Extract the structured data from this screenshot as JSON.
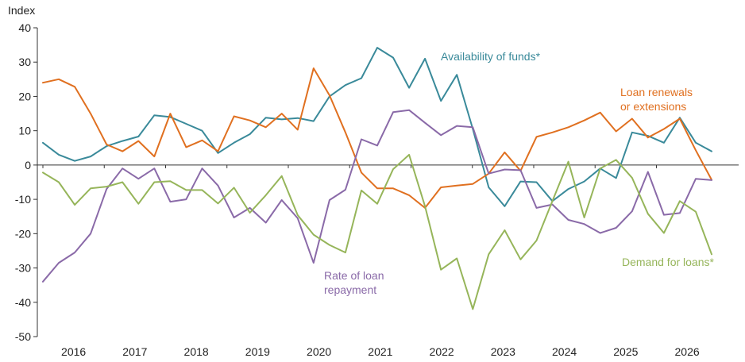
{
  "chart_data": {
    "type": "line",
    "title": "",
    "y_unit_label": "Index",
    "xlabel": "",
    "ylabel": "",
    "ylim": [
      -50,
      40
    ],
    "yticks": [
      40,
      30,
      20,
      10,
      0,
      -10,
      -20,
      -30,
      -40,
      -50
    ],
    "year_labels": [
      "2016",
      "2017",
      "2018",
      "2019",
      "2020",
      "2021",
      "2022",
      "2023",
      "2024",
      "2025",
      "2026"
    ],
    "x_start_year": 2015.5,
    "x_end_year": 2026.4,
    "grid": false,
    "colors": {
      "availability": "#3a8a9a",
      "renewals": "#e07020",
      "repayment": "#8a6aa8",
      "demand": "#96b55a",
      "axis": "#333333"
    },
    "series": [
      {
        "key": "availability",
        "label_lines": [
          "Availability of funds*"
        ],
        "values": [
          6.5,
          3,
          1.2,
          2.5,
          5.5,
          7,
          8.3,
          14.5,
          14,
          12,
          10,
          3.5,
          6.5,
          9,
          13.8,
          13.3,
          13.7,
          12.8,
          20,
          23.3,
          25.3,
          34.2,
          31.3,
          22.5,
          31,
          18.7,
          26.3,
          10.5,
          -6.5,
          -12,
          -4.8,
          -5,
          -10.5,
          -7,
          -4.8,
          -1,
          -3.8,
          9.5,
          8.5,
          6.5,
          13.8,
          6.5,
          4
        ]
      },
      {
        "key": "renewals",
        "label_lines": [
          "Loan renewals",
          "or extensions"
        ],
        "values": [
          24,
          25,
          22.8,
          15,
          6,
          4,
          7,
          2.5,
          15,
          5.2,
          7.2,
          4,
          14.2,
          13,
          11,
          15,
          10.3,
          28.2,
          20.3,
          9.5,
          -2.2,
          -6.8,
          -6.8,
          -8.8,
          -12.5,
          -6.5,
          -6,
          -5.5,
          -2.5,
          3.7,
          -1.7,
          8.2,
          9.5,
          11,
          13,
          15.3,
          9.8,
          13.5,
          8,
          10.5,
          13.5,
          4.3,
          -4.3
        ]
      },
      {
        "key": "repayment",
        "label_lines": [
          "Rate of loan",
          "repayment"
        ],
        "values": [
          -34,
          -28.5,
          -25.5,
          -20,
          -7,
          -1,
          -4,
          -1,
          -10.7,
          -10,
          -1,
          -6,
          -15.3,
          -12.5,
          -16.8,
          -10.2,
          -15.5,
          -28.5,
          -10.2,
          -7.2,
          7.5,
          5.7,
          15.4,
          16,
          12.3,
          8.7,
          11.4,
          11,
          -2.5,
          -1.3,
          -1.5,
          -12.5,
          -11.5,
          -16,
          -17.2,
          -19.8,
          -18.3,
          -13.5,
          -2,
          -14.5,
          -14,
          -4,
          -4.4
        ]
      },
      {
        "key": "demand",
        "label_lines": [
          "Demand for loans*"
        ],
        "values": [
          -2.2,
          -5,
          -11.6,
          -6.8,
          -6.3,
          -5,
          -11.3,
          -5,
          -4.7,
          -7.3,
          -7.3,
          -11.2,
          -6.6,
          -13.9,
          -8.8,
          -3.2,
          -14.6,
          -20.3,
          -23.3,
          -25.5,
          -7.4,
          -11.3,
          -1.2,
          3,
          -12,
          -30.5,
          -27.2,
          -42,
          -26,
          -19,
          -27.5,
          -22,
          -10.5,
          1,
          -15.3,
          -1,
          1.5,
          -3.7,
          -14.2,
          -19.8,
          -10.5,
          -13.6,
          -26
        ]
      }
    ]
  }
}
